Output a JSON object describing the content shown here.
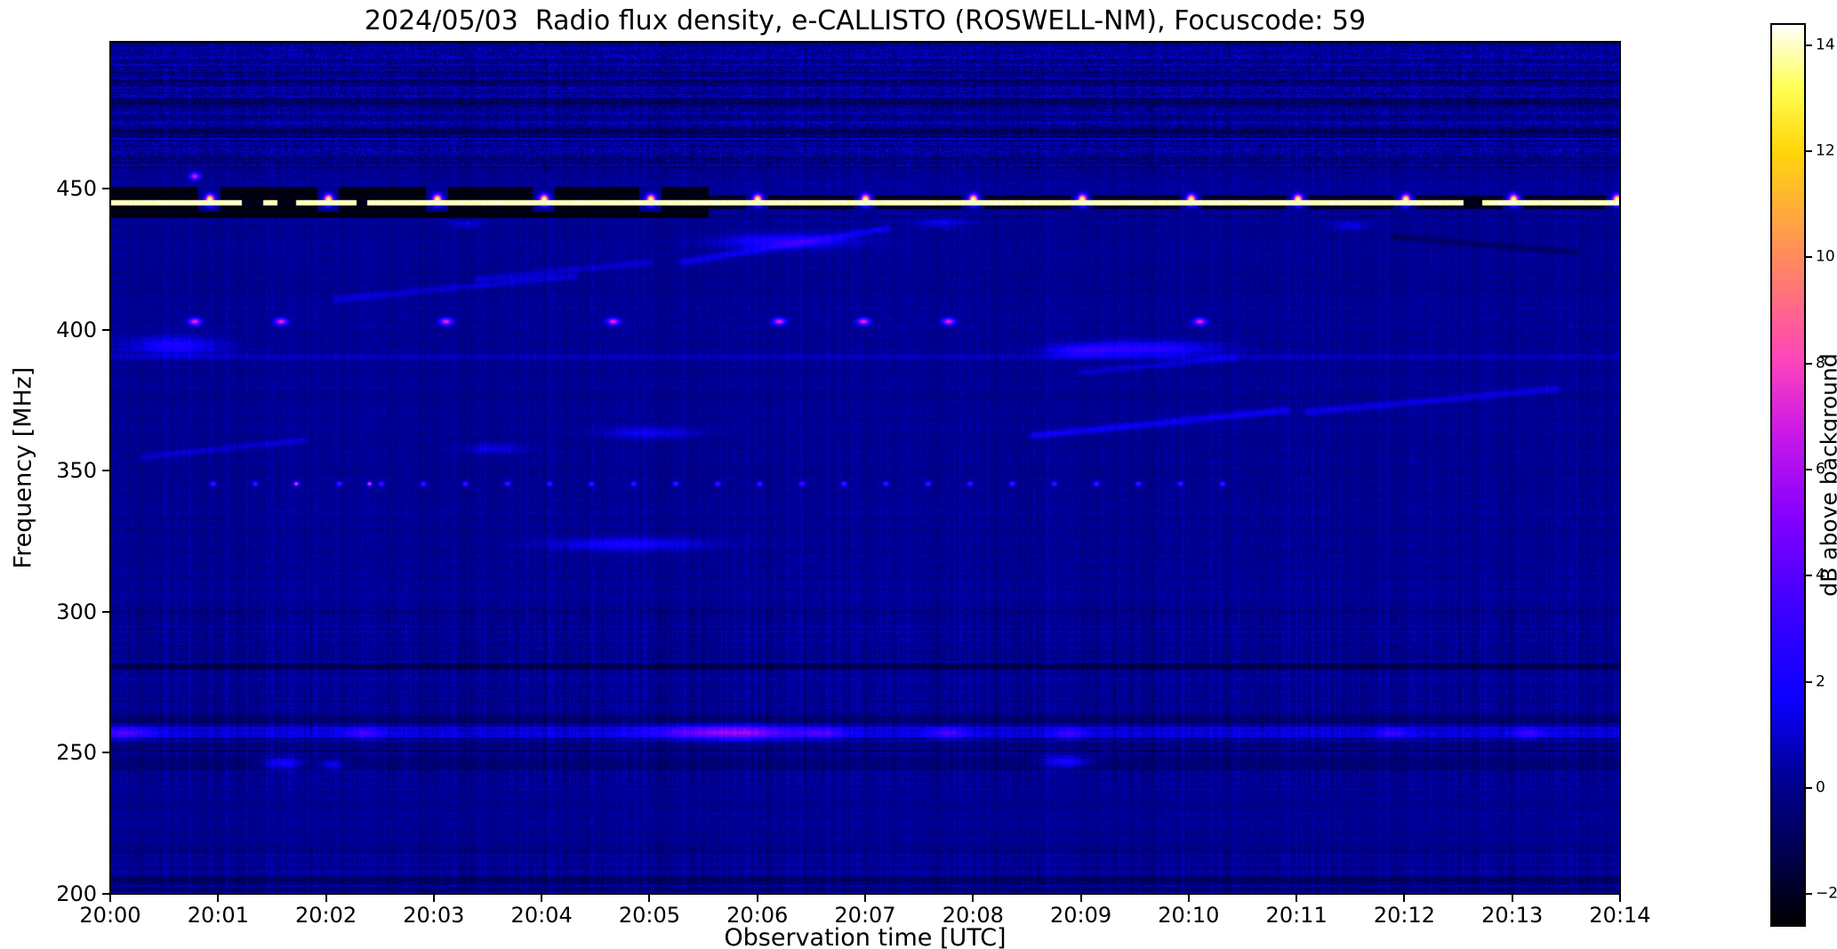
{
  "chart_data": {
    "type": "heatmap",
    "title": "2024/05/03  Radio flux density, e-CALLISTO (ROSWELL-NM), Focuscode: 59",
    "xlabel": "Observation time [UTC]",
    "ylabel": "Frequency [MHz]",
    "x_tick_labels": [
      "20:00",
      "20:01",
      "20:02",
      "20:03",
      "20:04",
      "20:05",
      "20:06",
      "20:07",
      "20:08",
      "20:09",
      "20:10",
      "20:11",
      "20:12",
      "20:13",
      "20:14"
    ],
    "x_tick_minutes": [
      0,
      1,
      2,
      3,
      4,
      5,
      6,
      7,
      8,
      9,
      10,
      11,
      12,
      13,
      14
    ],
    "y_tick_values": [
      200,
      250,
      300,
      350,
      400,
      450
    ],
    "x_range_minutes": [
      0,
      14
    ],
    "y_range_mhz": [
      200,
      502
    ],
    "colorbar": {
      "label": "dB above background",
      "ticks": [
        "14",
        "12",
        "10",
        "8",
        "6",
        "4",
        "2",
        "0",
        "−2"
      ],
      "tick_values": [
        14,
        12,
        10,
        8,
        6,
        4,
        2,
        0,
        -2
      ],
      "vmin": -2.6,
      "vmax": 14.4,
      "colormap_stops": [
        [
          0.0,
          [
            0,
            0,
            0
          ]
        ],
        [
          0.08,
          [
            0,
            0,
            80
          ]
        ],
        [
          0.16,
          [
            0,
            0,
            145
          ]
        ],
        [
          0.25,
          [
            10,
            0,
            255
          ]
        ],
        [
          0.35,
          [
            60,
            0,
            255
          ]
        ],
        [
          0.45,
          [
            130,
            0,
            255
          ]
        ],
        [
          0.55,
          [
            205,
            25,
            230
          ]
        ],
        [
          0.63,
          [
            255,
            70,
            185
          ]
        ],
        [
          0.71,
          [
            255,
            120,
            115
          ]
        ],
        [
          0.79,
          [
            255,
            170,
            60
          ]
        ],
        [
          0.86,
          [
            255,
            215,
            10
          ]
        ],
        [
          0.93,
          [
            255,
            255,
            85
          ]
        ],
        [
          1.0,
          [
            255,
            255,
            255
          ]
        ]
      ]
    },
    "noise": {
      "base_db": 0.1,
      "speckle_db": 0.45,
      "stripe_db": 0.28,
      "row_db": 0.18,
      "regions": [
        {
          "f": [
            457,
            502
          ],
          "speckle": 1.1,
          "stripe": 0.3,
          "row": 0.7
        },
        {
          "f": [
            238,
            302
          ],
          "speckle": 0.55,
          "stripe": 0.5,
          "row": 0.25
        },
        {
          "f": [
            200,
            217
          ],
          "speckle": 0.5,
          "stripe": 0.45,
          "row": 0.3
        },
        {
          "f": [
            302,
            360
          ],
          "stripe": 0.34
        }
      ]
    },
    "features": [
      {
        "kind": "band",
        "f": [
          250,
          253.5
        ],
        "t": [
          0,
          14
        ],
        "mode": "add",
        "db": -0.6
      },
      {
        "kind": "band",
        "f": [
          260.5,
          263
        ],
        "t": [
          0,
          14
        ],
        "mode": "add",
        "db": -0.7
      },
      {
        "kind": "band",
        "f": [
          255.5,
          259.2
        ],
        "t": [
          0,
          14
        ],
        "mode": "add",
        "db": 1.0
      },
      {
        "kind": "band",
        "f": [
          279.5,
          281.8
        ],
        "t": [
          0,
          14
        ],
        "mode": "add",
        "db": -1.3
      },
      {
        "kind": "band",
        "f": [
          203.5,
          206
        ],
        "t": [
          0,
          14
        ],
        "mode": "add",
        "db": -0.9
      },
      {
        "kind": "band",
        "f": [
          243.5,
          248.5
        ],
        "t": [
          0,
          14
        ],
        "mode": "add",
        "db": -0.45
      },
      {
        "kind": "band",
        "f": [
          299.5,
          301.5
        ],
        "t": [
          0,
          14
        ],
        "mode": "add",
        "db": -0.4
      },
      {
        "kind": "band",
        "f": [
          389.5,
          391.5
        ],
        "t": [
          0,
          14
        ],
        "mode": "add",
        "db": 0.5
      },
      {
        "kind": "band",
        "f": [
          469,
          471.5
        ],
        "t": [
          0,
          14
        ],
        "mode": "add",
        "db": -0.7
      },
      {
        "kind": "band",
        "f": [
          479,
          482
        ],
        "t": [
          0,
          14
        ],
        "mode": "add",
        "db": -0.7
      },
      {
        "kind": "band",
        "f": [
          486.5,
          488.5
        ],
        "t": [
          0,
          14
        ],
        "mode": "add",
        "db": -0.5
      },
      {
        "kind": "band",
        "f": [
          457.5,
          459.5
        ],
        "t": [
          0,
          14
        ],
        "mode": "add",
        "db": -0.4
      },
      {
        "kind": "band",
        "f": [
          200,
          202
        ],
        "t": [
          0,
          14
        ],
        "mode": "add",
        "db": -0.35
      },
      {
        "kind": "smear",
        "t": 0.15,
        "f": 257.2,
        "tw": 0.18,
        "fw": 1.4,
        "db": 2.6
      },
      {
        "kind": "smear",
        "t": 2.35,
        "f": 257.2,
        "tw": 0.12,
        "fw": 1.3,
        "db": 2.2
      },
      {
        "kind": "smear",
        "t": 5.45,
        "f": 257.5,
        "tw": 0.35,
        "fw": 1.7,
        "db": 2.8
      },
      {
        "kind": "smear",
        "t": 5.95,
        "f": 257.3,
        "tw": 0.3,
        "fw": 1.7,
        "db": 3.1
      },
      {
        "kind": "smear",
        "t": 6.6,
        "f": 257.2,
        "tw": 0.15,
        "fw": 1.4,
        "db": 2.4
      },
      {
        "kind": "smear",
        "t": 7.75,
        "f": 257.2,
        "tw": 0.12,
        "fw": 1.4,
        "db": 2.5
      },
      {
        "kind": "smear",
        "t": 8.9,
        "f": 257.0,
        "tw": 0.1,
        "fw": 1.3,
        "db": 2.2
      },
      {
        "kind": "smear",
        "t": 11.9,
        "f": 257.2,
        "tw": 0.1,
        "fw": 1.3,
        "db": 2.1
      },
      {
        "kind": "smear",
        "t": 13.15,
        "f": 257.2,
        "tw": 0.1,
        "fw": 1.3,
        "db": 2.1
      },
      {
        "kind": "smear",
        "t": 1.6,
        "f": 246.5,
        "tw": 0.12,
        "fw": 1.4,
        "db": 2.4
      },
      {
        "kind": "smear",
        "t": 2.05,
        "f": 246.0,
        "tw": 0.08,
        "fw": 1.2,
        "db": 1.9
      },
      {
        "kind": "smear",
        "t": 8.85,
        "f": 247.0,
        "tw": 0.15,
        "fw": 1.4,
        "db": 2.6
      },
      {
        "kind": "smear",
        "t": 0.6,
        "f": 394.5,
        "tw": 0.3,
        "fw": 2.2,
        "db": 2.2
      },
      {
        "kind": "smear",
        "t": 9.55,
        "f": 393.5,
        "tw": 0.45,
        "fw": 1.8,
        "db": 2.6
      },
      {
        "kind": "smear",
        "t": 9.0,
        "f": 392.5,
        "tw": 0.2,
        "fw": 1.4,
        "db": 1.7
      },
      {
        "kind": "smear",
        "t": 6.25,
        "f": 431.5,
        "tw": 0.4,
        "fw": 1.8,
        "db": 2.3
      },
      {
        "kind": "smear",
        "t": 4.8,
        "f": 324.0,
        "tw": 0.5,
        "fw": 1.6,
        "db": 1.9
      },
      {
        "kind": "smear",
        "t": 5.0,
        "f": 363.5,
        "tw": 0.3,
        "fw": 1.4,
        "db": 1.5
      },
      {
        "kind": "smear",
        "t": 3.55,
        "f": 358.0,
        "tw": 0.2,
        "fw": 1.3,
        "db": 1.3
      },
      {
        "kind": "smear",
        "t": 7.7,
        "f": 438.0,
        "tw": 0.15,
        "fw": 1.1,
        "db": 1.4
      },
      {
        "kind": "smear",
        "t": 11.5,
        "f": 437.0,
        "tw": 0.12,
        "fw": 1.1,
        "db": 1.3
      },
      {
        "kind": "smear",
        "t": 3.3,
        "f": 437.5,
        "tw": 0.1,
        "fw": 1.0,
        "db": 1.2
      },
      {
        "kind": "streak",
        "t1": 8.55,
        "f1": 362.5,
        "t2": 10.9,
        "f2": 371.5,
        "db": 1.5,
        "fw": 0.9
      },
      {
        "kind": "streak",
        "t1": 11.1,
        "f1": 371,
        "t2": 13.4,
        "f2": 379,
        "db": 1.2,
        "fw": 0.9
      },
      {
        "kind": "streak",
        "t1": 2.1,
        "f1": 411,
        "t2": 4.3,
        "f2": 419,
        "db": 1.0,
        "fw": 0.9
      },
      {
        "kind": "streak",
        "t1": 5.3,
        "f1": 424,
        "t2": 7.2,
        "f2": 436,
        "db": 1.3,
        "fw": 0.9
      },
      {
        "kind": "streak",
        "t1": 0.3,
        "f1": 355,
        "t2": 1.8,
        "f2": 361,
        "db": 1.0,
        "fw": 0.8
      },
      {
        "kind": "streak",
        "t1": 11.9,
        "f1": 433,
        "t2": 13.6,
        "f2": 427.5,
        "db": -1.0,
        "fw": 0.8
      },
      {
        "kind": "streak",
        "t1": 9.0,
        "f1": 385,
        "t2": 10.4,
        "f2": 390,
        "db": 1.0,
        "fw": 0.8
      },
      {
        "kind": "streak",
        "t1": 3.4,
        "f1": 418,
        "t2": 5.0,
        "f2": 424,
        "db": 0.9,
        "fw": 0.8
      },
      {
        "kind": "band",
        "f": [
          439.5,
          450.5
        ],
        "t": [
          0,
          5.55
        ],
        "mode": "set",
        "db": -2.3,
        "jitter": 0.25
      },
      {
        "kind": "band",
        "f": [
          442.8,
          447.6
        ],
        "t": [
          5.55,
          14
        ],
        "mode": "set",
        "db": -2.0,
        "jitter": 0.3
      },
      {
        "kind": "band",
        "f": [
          444.1,
          446.0
        ],
        "t": [
          0,
          14
        ],
        "mode": "set",
        "db": 14.0,
        "jitter": 0.5
      },
      {
        "kind": "band",
        "f": [
          443.6,
          446.4
        ],
        "t": [
          1.22,
          1.42
        ],
        "mode": "set",
        "db": -2.2,
        "jitter": 0.2
      },
      {
        "kind": "band",
        "f": [
          443.6,
          446.4
        ],
        "t": [
          1.55,
          1.72
        ],
        "mode": "set",
        "db": -2.2,
        "jitter": 0.2
      },
      {
        "kind": "band",
        "f": [
          443.6,
          446.4
        ],
        "t": [
          2.28,
          2.38
        ],
        "mode": "set",
        "db": -2.2,
        "jitter": 0.2
      },
      {
        "kind": "band",
        "f": [
          443.6,
          446.4
        ],
        "t": [
          12.55,
          12.72
        ],
        "mode": "set",
        "db": -2.2,
        "jitter": 0.2
      },
      {
        "kind": "blobs",
        "f": 446.2,
        "times": [
          0.92,
          2.02,
          3.03,
          4.02,
          5.01,
          6.0,
          7.0,
          8.0,
          9.01,
          10.02,
          11.01,
          12.01,
          13.01,
          13.97
        ],
        "peak": 15,
        "tw": 0.028,
        "fw": 1.25
      },
      {
        "kind": "blobs",
        "f": 454.5,
        "times": [
          0.78
        ],
        "peak": 7,
        "tw": 0.03,
        "fw": 0.9
      },
      {
        "kind": "blobs",
        "f": 403,
        "times": [
          0.78,
          1.58,
          3.11,
          4.66,
          6.2,
          6.98,
          7.77,
          10.1
        ],
        "peak": 7.5,
        "tw": 0.04,
        "fw": 0.85
      },
      {
        "kind": "blobs",
        "f": 345.5,
        "times": [
          0.95,
          1.34,
          1.73,
          2.12,
          2.51,
          2.9,
          3.29,
          3.68,
          4.07,
          4.46,
          4.85,
          5.24,
          5.63,
          6.02,
          6.41,
          6.8,
          7.19,
          7.58,
          7.97,
          8.36,
          8.75,
          9.14,
          9.53,
          9.92,
          10.31
        ],
        "peak": 4.6,
        "tw": 0.018,
        "fw": 0.55
      },
      {
        "kind": "blobs",
        "f": 345.5,
        "times": [
          1.72,
          2.4
        ],
        "peak": 9,
        "tw": 0.015,
        "fw": 0.5
      }
    ]
  }
}
